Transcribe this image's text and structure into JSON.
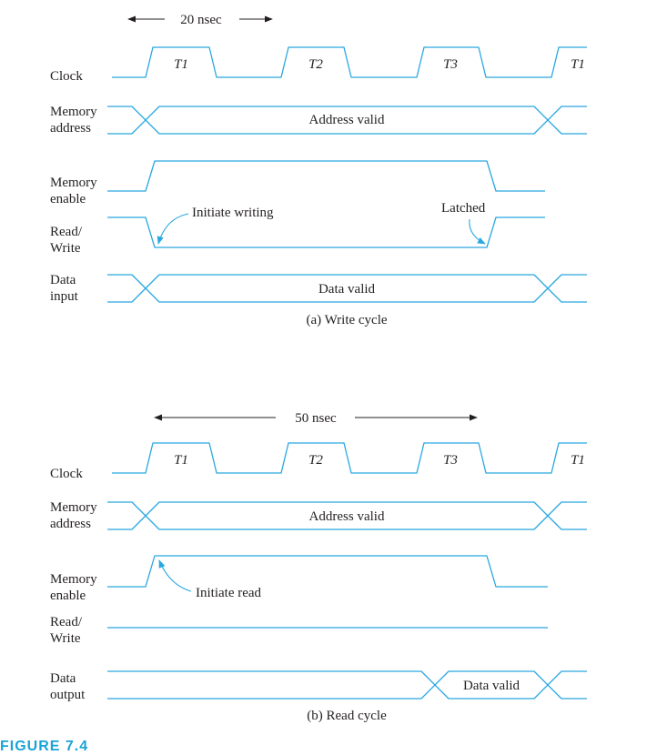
{
  "write": {
    "timing": "20 nsec",
    "clock_label": "Clock",
    "memory_address_label": [
      "Memory",
      "address"
    ],
    "memory_enable_label": [
      "Memory",
      "enable"
    ],
    "read_write_label": [
      "Read/",
      "Write"
    ],
    "data_label": [
      "Data",
      "input"
    ],
    "periods": [
      "T1",
      "T2",
      "T3",
      "T1"
    ],
    "address_text": "Address valid",
    "data_text": "Data valid",
    "annotation_initiate": "Initiate writing",
    "annotation_latched": "Latched",
    "caption": "(a) Write cycle"
  },
  "read": {
    "timing": "50 nsec",
    "clock_label": "Clock",
    "memory_address_label": [
      "Memory",
      "address"
    ],
    "memory_enable_label": [
      "Memory",
      "enable"
    ],
    "read_write_label": [
      "Read/",
      "Write"
    ],
    "data_label": [
      "Data",
      "output"
    ],
    "periods": [
      "T1",
      "T2",
      "T3",
      "T1"
    ],
    "address_text": "Address valid",
    "data_text": "Data valid",
    "annotation_initiate": "Initiate read",
    "caption": "(b) Read cycle"
  },
  "figure_label": "FIGURE 7.4",
  "colors": {
    "signal": "#29a8e0",
    "text": "#231f20",
    "figure": "#1aa3d8"
  }
}
